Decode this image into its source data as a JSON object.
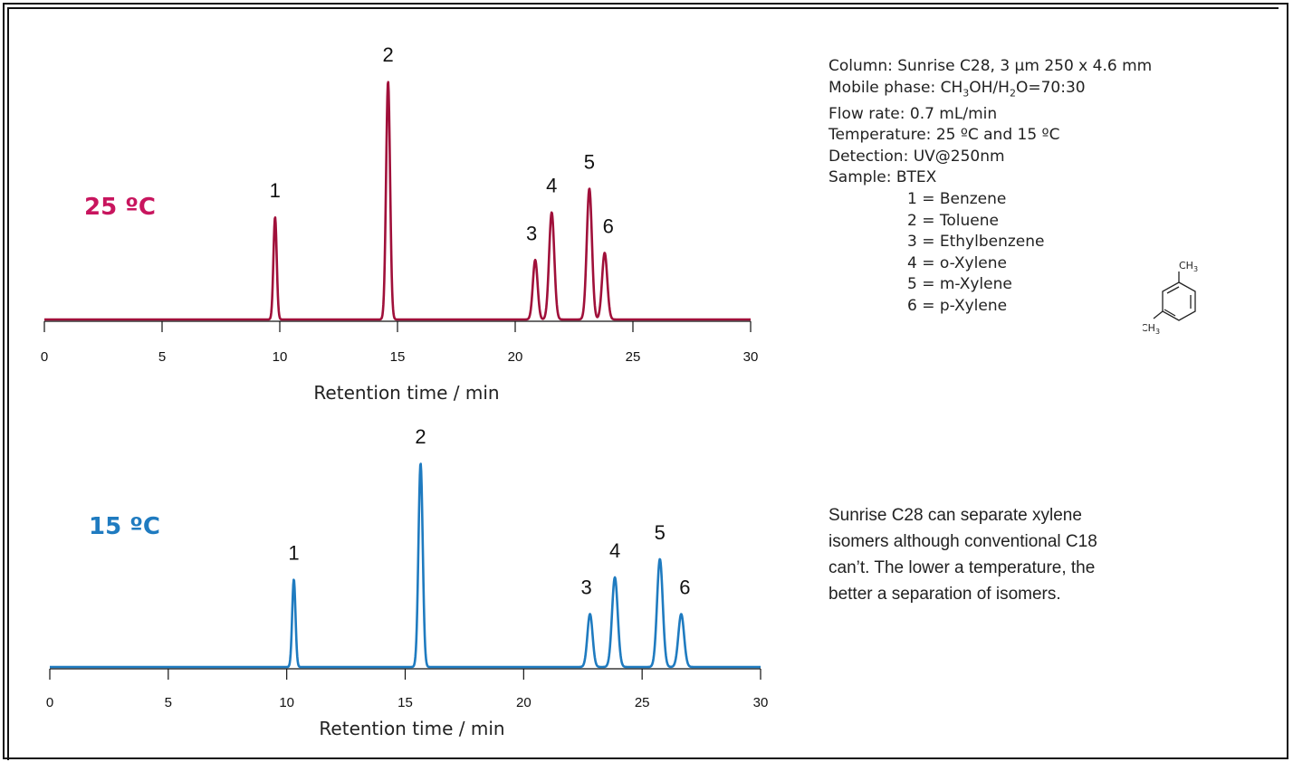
{
  "chart_data": [
    {
      "type": "line",
      "temperature_label": "25 ºC",
      "color": "#a0103a",
      "label_color": "#c8155e",
      "xlabel": "Retention time / min",
      "xlim": [
        0,
        30
      ],
      "xticks": [
        0,
        5,
        10,
        15,
        20,
        25,
        30
      ],
      "peaks": [
        {
          "label": "1",
          "rt": 9.8,
          "height": 0.43,
          "width": 0.07
        },
        {
          "label": "2",
          "rt": 14.6,
          "height": 1.0,
          "width": 0.085
        },
        {
          "label": "3",
          "rt": 20.85,
          "height": 0.25,
          "width": 0.1
        },
        {
          "label": "4",
          "rt": 21.55,
          "height": 0.45,
          "width": 0.11
        },
        {
          "label": "5",
          "rt": 23.15,
          "height": 0.55,
          "width": 0.11
        },
        {
          "label": "6",
          "rt": 23.8,
          "height": 0.28,
          "width": 0.11
        }
      ]
    },
    {
      "type": "line",
      "temperature_label": "15 ºC",
      "color": "#1f7bc0",
      "label_color": "#1f7bc0",
      "xlabel": "Retention time / min",
      "xlim": [
        0,
        30
      ],
      "xticks": [
        0,
        5,
        10,
        15,
        20,
        25,
        30
      ],
      "peaks": [
        {
          "label": "1",
          "rt": 10.3,
          "height": 0.43,
          "width": 0.07
        },
        {
          "label": "2",
          "rt": 15.65,
          "height": 1.0,
          "width": 0.09
        },
        {
          "label": "3",
          "rt": 22.8,
          "height": 0.26,
          "width": 0.11
        },
        {
          "label": "4",
          "rt": 23.85,
          "height": 0.44,
          "width": 0.12
        },
        {
          "label": "5",
          "rt": 25.75,
          "height": 0.53,
          "width": 0.12
        },
        {
          "label": "6",
          "rt": 26.65,
          "height": 0.26,
          "width": 0.12
        }
      ]
    }
  ],
  "conditions": {
    "column": "Column: Sunrise C28, 3 µm  250 x 4.6 mm",
    "mobile_phase_prefix": "Mobile phase: CH",
    "mobile_phase_sub1": "3",
    "mobile_phase_mid": "OH/H",
    "mobile_phase_sub2": "2",
    "mobile_phase_suffix": "O=70:30",
    "flow_rate": "Flow rate: 0.7 mL/min",
    "temperature": "Temperature: 25 ºC and 15 ºC",
    "detection": "Detection: UV@250nm",
    "sample": "Sample: BTEX",
    "compounds": [
      "1 = Benzene",
      "2 = Toluene",
      "3 = Ethylbenzene",
      "4 = o-Xylene",
      "5 = m-Xylene",
      "6 = p-Xylene"
    ]
  },
  "molecule": {
    "substituent": "CH",
    "subscript": "3"
  },
  "note": "Sunrise C28 can separate xylene isomers although conventional C18 can’t. The lower a temperature, the better a separation of isomers."
}
